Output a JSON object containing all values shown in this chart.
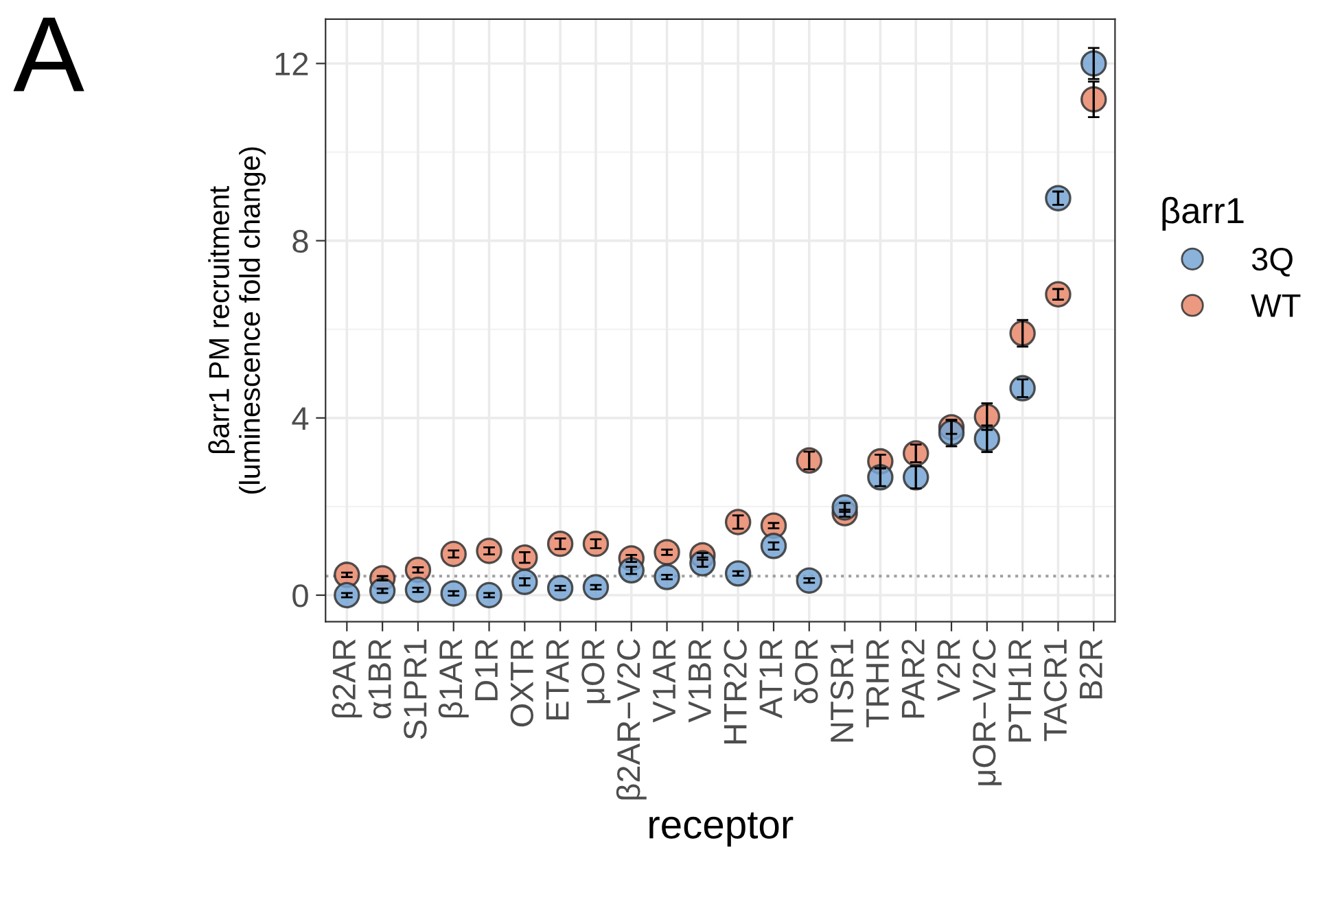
{
  "chart_data": {
    "type": "scatter",
    "xlabel": "receptor",
    "ylabel": "βarr1 PM recruitment\n(luminescence fold change)",
    "legend_title": "βarr1",
    "annotations": [
      "A"
    ],
    "categories": [
      "β2AR",
      "α1BR",
      "S1PR1",
      "β1AR",
      "D1R",
      "OXTR",
      "ETAR",
      "μOR",
      "β2AR−V2C",
      "V1AR",
      "V1BR",
      "HTR2C",
      "AT1R",
      "δOR",
      "NTSR1",
      "TRHR",
      "PAR2",
      "V2R",
      "μOR−V2C",
      "PTH1R",
      "TACR1",
      "B2R"
    ],
    "series": [
      {
        "name": "3Q",
        "color": "#76a5d3",
        "values": [
          0.0,
          0.1,
          0.12,
          0.04,
          0.0,
          0.3,
          0.16,
          0.18,
          0.56,
          0.41,
          0.72,
          0.49,
          1.11,
          0.33,
          1.98,
          2.66,
          2.66,
          3.66,
          3.53,
          4.67,
          8.96,
          12.0
        ],
        "errors": [
          0.05,
          0.05,
          0.05,
          0.05,
          0.05,
          0.08,
          0.05,
          0.05,
          0.08,
          0.05,
          0.08,
          0.05,
          0.08,
          0.05,
          0.1,
          0.2,
          0.25,
          0.3,
          0.3,
          0.2,
          0.15,
          0.35
        ]
      },
      {
        "name": "WT",
        "color": "#e8876a",
        "values": [
          0.46,
          0.38,
          0.57,
          0.93,
          1.0,
          0.85,
          1.16,
          1.16,
          0.83,
          0.97,
          0.9,
          1.65,
          1.57,
          3.04,
          1.85,
          3.02,
          3.2,
          3.79,
          4.03,
          5.91,
          6.79,
          11.19
        ],
        "errors": [
          0.05,
          0.05,
          0.06,
          0.08,
          0.08,
          0.12,
          0.12,
          0.1,
          0.08,
          0.06,
          0.05,
          0.15,
          0.06,
          0.2,
          0.08,
          0.15,
          0.2,
          0.15,
          0.3,
          0.3,
          0.12,
          0.4
        ]
      }
    ],
    "ylim": [
      -0.6,
      13.0
    ],
    "yticks": [
      0,
      4,
      8,
      12
    ],
    "grid": true,
    "legend": "right",
    "marker": "circle",
    "ref_lines": [
      {
        "axis": "y",
        "value": 0.43,
        "color": "#a0a0a0",
        "line_style": "dotted"
      }
    ]
  }
}
